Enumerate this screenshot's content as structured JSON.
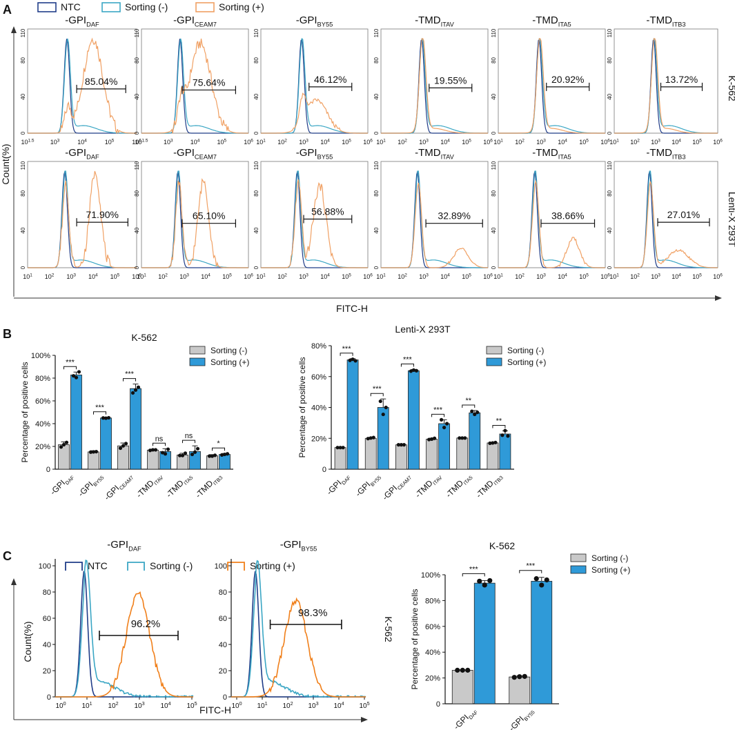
{
  "panels": {
    "a": "A",
    "b": "B",
    "c": "C"
  },
  "legend": {
    "ntc": "NTC",
    "neg": "Sorting (-)",
    "pos": "Sorting (+)"
  },
  "colors": {
    "ntc": "#1f3c88",
    "neg": "#3aa6c4",
    "pos_a": "#f0a063",
    "pos_c": "#f07f1a",
    "bar_neg": "#c9c9c9",
    "bar_pos": "#2f9ad8",
    "axis": "#111111"
  },
  "panelA": {
    "ylabel": "Count(%)",
    "xlabel": "FITC-H",
    "yticks": [
      "0",
      "40",
      "80",
      "110"
    ],
    "rows": [
      {
        "label": "K-562",
        "xticks_k": [
          "10 1.5",
          "10 3",
          "10 4",
          "10 5",
          "10 6"
        ],
        "xticks_k_fmt": [
          [
            "10",
            "1.5"
          ],
          [
            "10",
            "3"
          ],
          [
            "10",
            "4"
          ],
          [
            "10",
            "5"
          ],
          [
            "10",
            "6"
          ]
        ]
      },
      {
        "label": "Lenti-X 293T"
      }
    ],
    "titles": [
      {
        "base": "-GPI",
        "sub": "DAF"
      },
      {
        "base": "-GPI",
        "sub": "CEAM7"
      },
      {
        "base": "-GPI",
        "sub": "BY55"
      },
      {
        "base": "-TMD",
        "sub": "ITAV"
      },
      {
        "base": "-TMD",
        "sub": "ITA5"
      },
      {
        "base": "-TMD",
        "sub": "ITB3"
      }
    ],
    "gates_row1": [
      "85.04%",
      "75.64%",
      "46.12%",
      "19.55%",
      "20.92%",
      "13.72%"
    ],
    "gates_row2": [
      "71.90%",
      "65.10%",
      "56.88%",
      "32.89%",
      "38.66%",
      "27.01%"
    ],
    "xticks_row1": [
      [
        [
          "10",
          "1.5"
        ],
        [
          "10",
          "3"
        ],
        [
          "10",
          "4"
        ],
        [
          "10",
          "5"
        ],
        [
          "10",
          "6"
        ]
      ],
      [
        [
          "10",
          "1.5"
        ],
        [
          "10",
          "3"
        ],
        [
          "10",
          "4"
        ],
        [
          "10",
          "5"
        ],
        [
          "10",
          "6"
        ]
      ],
      [
        [
          "10",
          "1"
        ],
        [
          "10",
          "2"
        ],
        [
          "10",
          "3"
        ],
        [
          "10",
          "4"
        ],
        [
          "10",
          "5"
        ],
        [
          "10",
          "6"
        ]
      ],
      [
        [
          "10",
          "1"
        ],
        [
          "10",
          "2"
        ],
        [
          "10",
          "3"
        ],
        [
          "10",
          "4"
        ],
        [
          "10",
          "5"
        ],
        [
          "10",
          "6"
        ]
      ],
      [
        [
          "10",
          "1"
        ],
        [
          "10",
          "2"
        ],
        [
          "10",
          "3"
        ],
        [
          "10",
          "4"
        ],
        [
          "10",
          "5"
        ],
        [
          "10",
          "6"
        ]
      ],
      [
        [
          "10",
          "1"
        ],
        [
          "10",
          "2"
        ],
        [
          "10",
          "3"
        ],
        [
          "10",
          "4"
        ],
        [
          "10",
          "5"
        ],
        [
          "10",
          "6"
        ]
      ]
    ],
    "xticks_row2": [
      [
        [
          "10",
          "1"
        ],
        [
          "10",
          "2"
        ],
        [
          "10",
          "3"
        ],
        [
          "10",
          "4"
        ],
        [
          "10",
          "5"
        ],
        [
          "10",
          "6"
        ]
      ],
      [
        [
          "10",
          "1"
        ],
        [
          "10",
          "2"
        ],
        [
          "10",
          "3"
        ],
        [
          "10",
          "4"
        ],
        [
          "10",
          "5"
        ],
        [
          "10",
          "6"
        ]
      ],
      [
        [
          "10",
          "1"
        ],
        [
          "10",
          "2"
        ],
        [
          "10",
          "3"
        ],
        [
          "10",
          "4"
        ],
        [
          "10",
          "5"
        ],
        [
          "10",
          "6"
        ]
      ],
      [
        [
          "10",
          "1"
        ],
        [
          "10",
          "2"
        ],
        [
          "10",
          "3"
        ],
        [
          "10",
          "4"
        ],
        [
          "10",
          "5"
        ],
        [
          "10",
          "6"
        ]
      ],
      [
        [
          "10",
          "1"
        ],
        [
          "10",
          "2"
        ],
        [
          "10",
          "3"
        ],
        [
          "10",
          "4"
        ],
        [
          "10",
          "5"
        ],
        [
          "10",
          "6"
        ]
      ],
      [
        [
          "10",
          "1"
        ],
        [
          "10",
          "2"
        ],
        [
          "10",
          "3"
        ],
        [
          "10",
          "4"
        ],
        [
          "10",
          "5"
        ],
        [
          "10",
          "6"
        ]
      ]
    ]
  },
  "chart_data": [
    {
      "type": "bar",
      "title": "K-562",
      "ylabel": "Percentage of positive cells",
      "yticks": [
        "0",
        "20%",
        "40%",
        "60%",
        "80%",
        "100%"
      ],
      "ylim": [
        0,
        100
      ],
      "categories": [
        {
          "base": "-GPI",
          "sub": "DAF"
        },
        {
          "base": "-GPI",
          "sub": "BY55"
        },
        {
          "base": "-GPI",
          "sub": "CEAM7"
        },
        {
          "base": "-TMD",
          "sub": "ITAV"
        },
        {
          "base": "-TMD",
          "sub": "ITA5"
        },
        {
          "base": "-TMD",
          "sub": "ITB3"
        }
      ],
      "series": [
        {
          "name": "Sorting (-)",
          "values": [
            21.5,
            15.2,
            20.5,
            16.8,
            12.5,
            11.8
          ],
          "err": [
            2.5,
            1,
            2.5,
            0.8,
            1.5,
            1
          ]
        },
        {
          "name": "Sorting (+)",
          "values": [
            82.8,
            45.0,
            70.8,
            15.5,
            15.5,
            13.0
          ],
          "err": [
            2.5,
            0.6,
            4,
            2.5,
            5,
            0.8
          ]
        }
      ],
      "points": [
        [
          [
            19.5,
            21.5,
            23.5
          ],
          [
            82,
            80.5,
            85.5
          ]
        ],
        [
          [
            15,
            15.2,
            15.4
          ],
          [
            45,
            44.8,
            45.2
          ]
        ],
        [
          [
            18.5,
            20.5,
            22.5
          ],
          [
            67,
            69.5,
            72
          ]
        ],
        [
          [
            16.5,
            17,
            17
          ],
          [
            14.5,
            13.5,
            17.5
          ]
        ],
        [
          [
            12,
            12,
            14
          ],
          [
            13,
            15,
            18
          ]
        ],
        [
          [
            11.5,
            11.5,
            12.2
          ],
          [
            12.5,
            13,
            13.5
          ]
        ]
      ],
      "signif": [
        "***",
        "***",
        "***",
        "ns",
        "ns",
        "*"
      ]
    },
    {
      "type": "bar",
      "title": "Lenti-X 293T",
      "ylabel": "Percentage of positive cells",
      "yticks": [
        "0",
        "20%",
        "40%",
        "60%",
        "80%"
      ],
      "ylim": [
        0,
        80
      ],
      "categories": [
        {
          "base": "-GPI",
          "sub": "DAF"
        },
        {
          "base": "-GPI",
          "sub": "BY55"
        },
        {
          "base": "-GPI",
          "sub": "CEAM7"
        },
        {
          "base": "-TMD",
          "sub": "ITAV"
        },
        {
          "base": "-TMD",
          "sub": "ITA5"
        },
        {
          "base": "-TMD",
          "sub": "ITB3"
        }
      ],
      "series": [
        {
          "name": "Sorting (-)",
          "values": [
            14.0,
            20.0,
            15.8,
            19.5,
            20.2,
            17.0
          ],
          "err": [
            0.3,
            0.6,
            0.3,
            0.6,
            0.3,
            0.5
          ]
        },
        {
          "name": "Sorting (+)",
          "values": [
            70.8,
            40.0,
            63.8,
            29.5,
            36.5,
            22.8
          ],
          "err": [
            0.8,
            5.5,
            0.8,
            2.5,
            1.5,
            2
          ]
        }
      ],
      "points": [
        [
          [
            14,
            14,
            14
          ],
          [
            70.5,
            71.2,
            70.2
          ]
        ],
        [
          [
            19.8,
            20.2,
            20.5
          ],
          [
            44,
            35.5,
            40
          ]
        ],
        [
          [
            15.8,
            15.8,
            15.8
          ],
          [
            63.5,
            64.2,
            63.8
          ]
        ],
        [
          [
            19.2,
            19.5,
            20
          ],
          [
            32,
            27,
            29.5
          ]
        ],
        [
          [
            20.2,
            20.2,
            20.2
          ],
          [
            37.5,
            35.5,
            36.8
          ]
        ],
        [
          [
            16.8,
            17,
            17.3
          ],
          [
            22,
            25,
            21.5
          ]
        ]
      ],
      "signif": [
        "***",
        "***",
        "***",
        "***",
        "**",
        "**"
      ]
    },
    {
      "type": "bar",
      "title": "K-562",
      "ylabel": "Percentage of positive cells",
      "yticks": [
        "0",
        "20%",
        "40%",
        "60%",
        "80%",
        "100%"
      ],
      "ylim": [
        0,
        100
      ],
      "categories": [
        {
          "base": "-GPI",
          "sub": "DAF"
        },
        {
          "base": "-GPI",
          "sub": "BY55"
        }
      ],
      "series": [
        {
          "name": "Sorting (-)",
          "values": [
            26.0,
            20.8
          ],
          "err": [
            0.5,
            0.8
          ]
        },
        {
          "name": "Sorting (+)",
          "values": [
            93.5,
            95.0
          ],
          "err": [
            2,
            3
          ]
        }
      ],
      "points": [
        [
          [
            26,
            26,
            26
          ],
          [
            95,
            92,
            95.5
          ]
        ],
        [
          [
            20.5,
            21,
            21.2
          ],
          [
            97,
            92,
            96
          ]
        ]
      ],
      "signif": [
        "***",
        "***"
      ]
    }
  ],
  "panelC": {
    "ylabel": "Count(%)",
    "xlabel": "FITC-H",
    "side_label": "K-562",
    "yticks": [
      "0",
      "20",
      "40",
      "60",
      "80",
      "100"
    ],
    "xticks": [
      [
        "10",
        "0"
      ],
      [
        "10",
        "1"
      ],
      [
        "10",
        "2"
      ],
      [
        "10",
        "3"
      ],
      [
        "10",
        "4"
      ],
      [
        "10",
        "5"
      ]
    ],
    "titles": [
      {
        "base": "-GPI",
        "sub": "DAF"
      },
      {
        "base": "-GPI",
        "sub": "BY55"
      }
    ],
    "gates": [
      "96.2%",
      "98.3%"
    ]
  }
}
